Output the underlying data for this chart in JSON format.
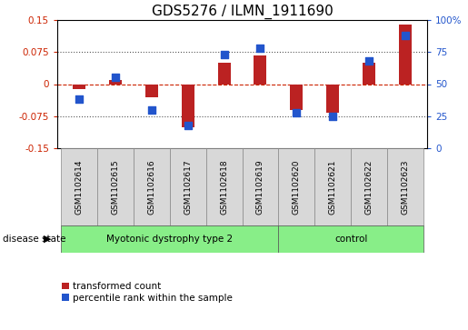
{
  "title": "GDS5276 / ILMN_1911690",
  "samples": [
    "GSM1102614",
    "GSM1102615",
    "GSM1102616",
    "GSM1102617",
    "GSM1102618",
    "GSM1102619",
    "GSM1102620",
    "GSM1102621",
    "GSM1102622",
    "GSM1102623"
  ],
  "red_values": [
    -0.012,
    0.01,
    -0.03,
    -0.1,
    0.05,
    0.068,
    -0.06,
    -0.068,
    0.05,
    0.14
  ],
  "blue_values": [
    38,
    55,
    30,
    18,
    73,
    78,
    28,
    25,
    68,
    88
  ],
  "ylim_left": [
    -0.15,
    0.15
  ],
  "ylim_right": [
    0,
    100
  ],
  "yticks_left": [
    -0.15,
    -0.075,
    0,
    0.075,
    0.15
  ],
  "yticks_right": [
    0,
    25,
    50,
    75,
    100
  ],
  "ytick_labels_left": [
    "-0.15",
    "-0.075",
    "0",
    "0.075",
    "0.15"
  ],
  "ytick_labels_right": [
    "0",
    "25",
    "50",
    "75",
    "100%"
  ],
  "hlines_dotted": [
    0.075,
    -0.075
  ],
  "hline_dashed": 0,
  "group1_label": "Myotonic dystrophy type 2",
  "group2_label": "control",
  "group1_indices": [
    0,
    1,
    2,
    3,
    4,
    5
  ],
  "group2_indices": [
    6,
    7,
    8,
    9
  ],
  "disease_state_label": "disease state",
  "legend1_label": "transformed count",
  "legend2_label": "percentile rank within the sample",
  "bar_color": "#bb2222",
  "dot_color": "#2255cc",
  "bar_width": 0.35,
  "dot_size": 28,
  "bg_color": "#d8d8d8",
  "group_color": "#88ee88",
  "title_fontsize": 11,
  "tick_fontsize": 7.5,
  "label_fontsize": 7.5,
  "sample_fontsize": 6.5
}
